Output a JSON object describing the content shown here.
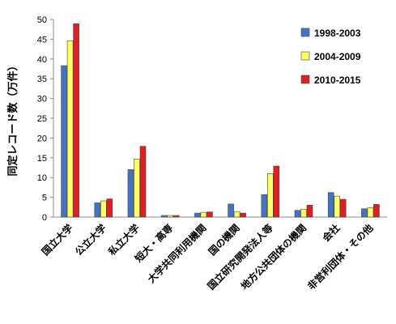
{
  "chart_data": {
    "type": "bar",
    "ylabel": "同定レコード数（万件）",
    "ylim": [
      0,
      50
    ],
    "yticks": [
      0,
      5,
      10,
      15,
      20,
      25,
      30,
      35,
      40,
      45,
      50
    ],
    "grid": false,
    "legend_position": "top-right",
    "categories": [
      "国立大学",
      "公立大学",
      "私立大学",
      "短大・高専",
      "大学共同利用機関",
      "国の機関",
      "国立研究開発法人等",
      "地方公共団体の機関",
      "会社",
      "非営利団体・その他"
    ],
    "series": [
      {
        "name": "1998-2003",
        "color": "#4472c4",
        "values": [
          38.3,
          3.6,
          12.0,
          0.4,
          1.0,
          3.3,
          5.7,
          1.7,
          6.2,
          2.1
        ]
      },
      {
        "name": "2004-2009",
        "color": "#ffff66",
        "values": [
          44.6,
          4.1,
          14.7,
          0.4,
          1.2,
          1.4,
          11.0,
          2.0,
          5.3,
          2.4
        ]
      },
      {
        "name": "2010-2015",
        "color": "#e02020",
        "values": [
          48.9,
          4.6,
          17.9,
          0.4,
          1.3,
          1.0,
          12.9,
          3.0,
          4.5,
          3.2
        ]
      }
    ]
  }
}
